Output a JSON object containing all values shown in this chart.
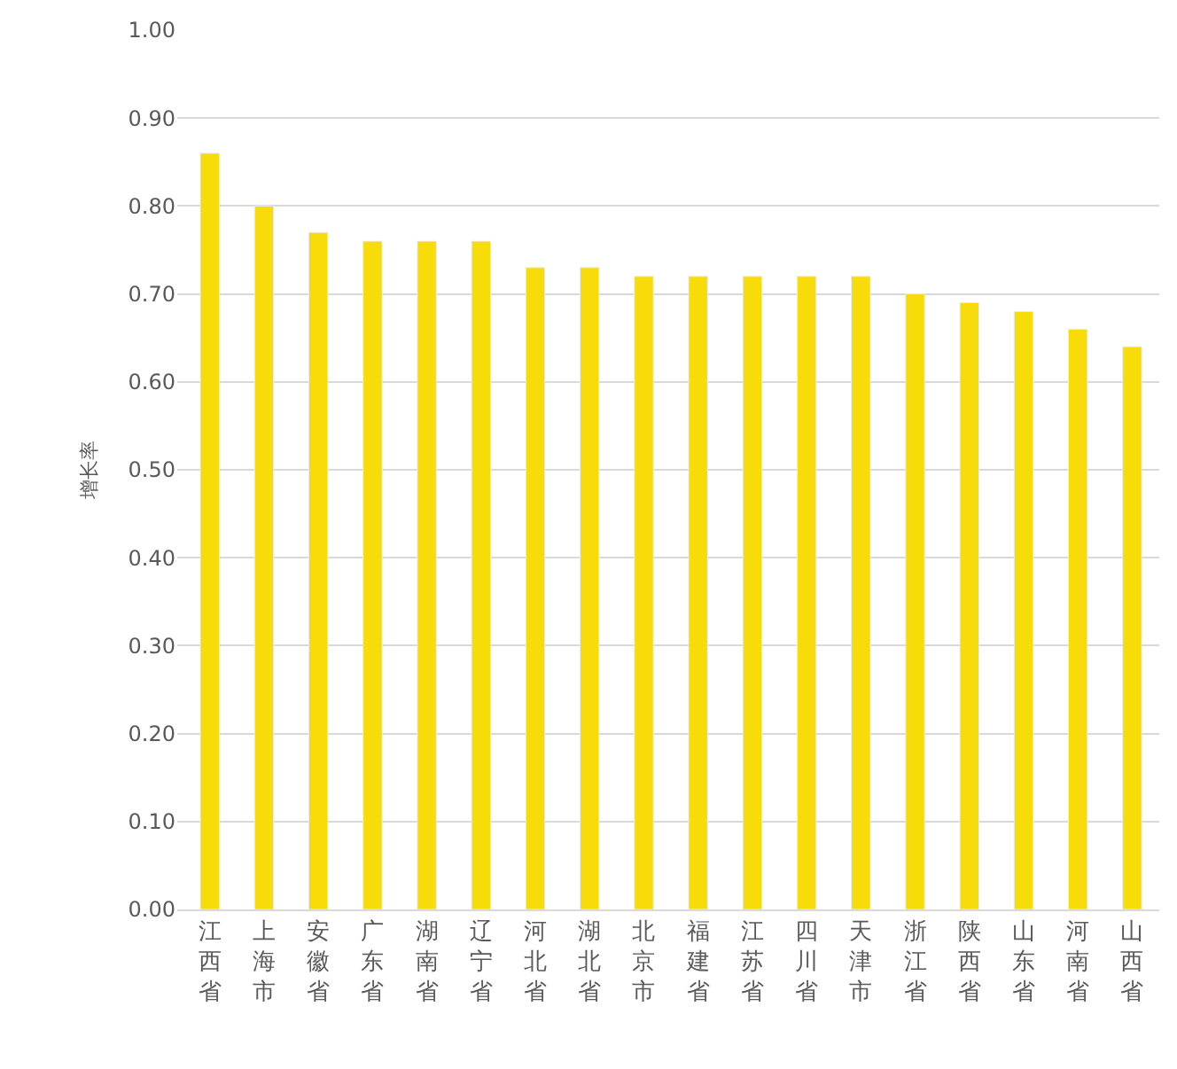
{
  "chart_data": {
    "type": "bar",
    "ylabel": "增长率",
    "categories": [
      "江西省",
      "上海市",
      "安徽省",
      "广东省",
      "湖南省",
      "辽宁省",
      "河北省",
      "湖北省",
      "北京市",
      "福建省",
      "江苏省",
      "四川省",
      "天津市",
      "浙江省",
      "陕西省",
      "山东省",
      "河南省",
      "山西省"
    ],
    "values": [
      0.86,
      0.8,
      0.77,
      0.76,
      0.76,
      0.76,
      0.73,
      0.73,
      0.72,
      0.72,
      0.72,
      0.72,
      0.72,
      0.7,
      0.69,
      0.68,
      0.66,
      0.64
    ],
    "color": "#f7dc0a",
    "ylim": [
      0,
      1
    ],
    "yticks": [
      {
        "value": 0,
        "label": "0.00"
      },
      {
        "value": 0.1,
        "label": "0.10"
      },
      {
        "value": 0.2,
        "label": "0.20"
      },
      {
        "value": 0.3,
        "label": "0.30"
      },
      {
        "value": 0.4,
        "label": "0.40"
      },
      {
        "value": 0.5,
        "label": "0.50"
      },
      {
        "value": 0.6,
        "label": "0.60"
      },
      {
        "value": 0.7,
        "label": "0.70"
      },
      {
        "value": 0.8,
        "label": "0.80"
      },
      {
        "value": 0.9,
        "label": "0.90"
      },
      {
        "value": 1.0,
        "label": "1.00"
      }
    ],
    "grid": "y"
  }
}
